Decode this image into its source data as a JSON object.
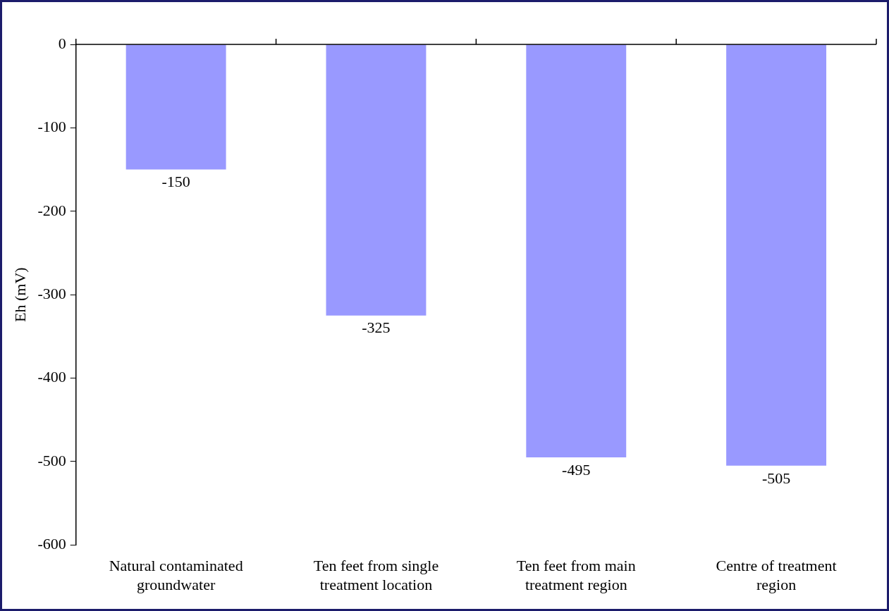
{
  "chart_data": {
    "type": "bar",
    "ylabel": "Eh (mV)",
    "categories": [
      "Natural contaminated groundwater",
      "Ten feet from single treatment location",
      "Ten feet from main treatment region",
      "Centre of treatment region"
    ],
    "values": [
      -150,
      -325,
      -495,
      -505
    ],
    "color": "#9999ff",
    "ylim": [
      -600,
      0
    ],
    "yticks": [
      -600,
      -500,
      -400,
      -300,
      -200,
      -100,
      0
    ],
    "grid": false,
    "legend": false,
    "data_labels": true
  }
}
